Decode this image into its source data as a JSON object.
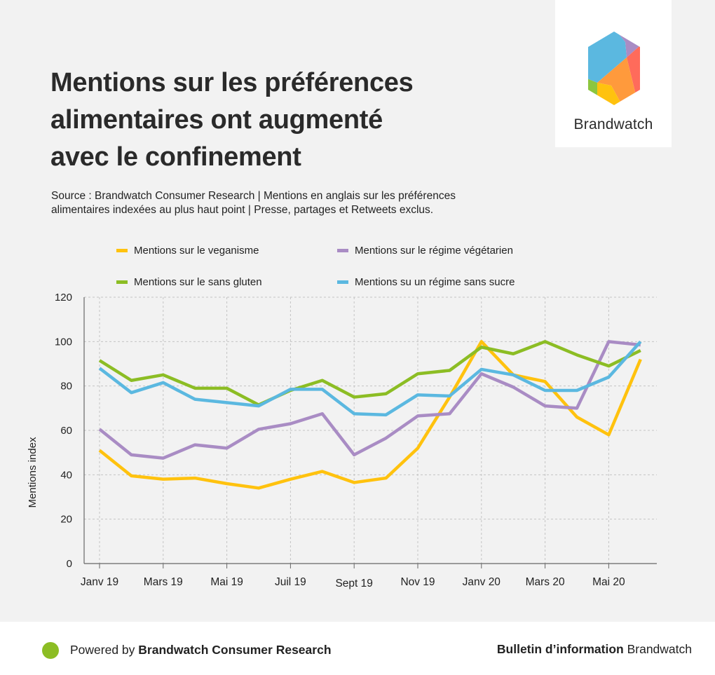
{
  "header": {
    "title": "Mentions sur les préférences\nalimentaires ont augmenté\navec le confinement",
    "source": "Source : Brandwatch Consumer Research | Mentions en anglais sur les préférences\nalimentaires  indexées au plus haut point | Presse, partages et Retweets exclus."
  },
  "logo": {
    "brand_name": "Brandwatch",
    "colors": [
      "#5bb8e0",
      "#a98cc4",
      "#ff6b5b",
      "#ff9a3c",
      "#ffc20e",
      "#8cc63f"
    ]
  },
  "chart_data": {
    "type": "line",
    "title": "Mentions sur les préférences alimentaires ont augmenté avec le confinement",
    "xlabel": "",
    "ylabel": "Mentions index",
    "ylim": [
      0,
      120
    ],
    "yticks": [
      0,
      20,
      40,
      60,
      80,
      100,
      120
    ],
    "x_labels": [
      "Janv 19",
      "Mars 19",
      "Mai 19",
      "Juil 19",
      "Sept 19",
      "Nov 19",
      "Janv 20",
      "Mars 20",
      "Mai 20"
    ],
    "x_label_index": [
      0,
      2,
      4,
      6,
      8,
      10,
      12,
      14,
      16
    ],
    "n_points": 18,
    "grid": true,
    "legend_position": "top",
    "series": [
      {
        "name": "Mentions sur le veganisme",
        "color": "#ffc20e",
        "values": [
          51,
          39.5,
          38,
          38.5,
          36,
          34,
          38,
          41.5,
          36.5,
          38.5,
          52,
          75,
          100,
          85,
          82,
          66,
          58,
          92
        ]
      },
      {
        "name": "Mentions sur le régime végétarien",
        "color": "#a98cc4",
        "values": [
          60.5,
          49,
          47.5,
          53.5,
          52,
          60.5,
          63,
          67.5,
          49,
          56.5,
          66.5,
          67.5,
          85.5,
          79.5,
          71,
          70,
          100,
          98.5
        ]
      },
      {
        "name": "Mentions sur le sans gluten",
        "color": "#8cbd24",
        "values": [
          91.5,
          82.5,
          85,
          79,
          79,
          71.5,
          78,
          82.5,
          75,
          76.5,
          85.5,
          87,
          97.5,
          94.5,
          100,
          94,
          89,
          96
        ]
      },
      {
        "name": "Mentions su un régime sans sucre",
        "color": "#5bb8e0",
        "values": [
          88,
          77,
          81.5,
          74,
          72.5,
          71,
          78.5,
          78.5,
          67.5,
          67,
          76,
          75.5,
          87.5,
          85,
          78,
          78,
          84,
          100
        ]
      }
    ]
  },
  "footer": {
    "powered_prefix": "Powered by ",
    "powered_brand": "Brandwatch Consumer Research",
    "bulletin_bold": "Bulletin d’information",
    "bulletin_brand": " Brandwatch",
    "dot_color": "#8cbd24"
  }
}
